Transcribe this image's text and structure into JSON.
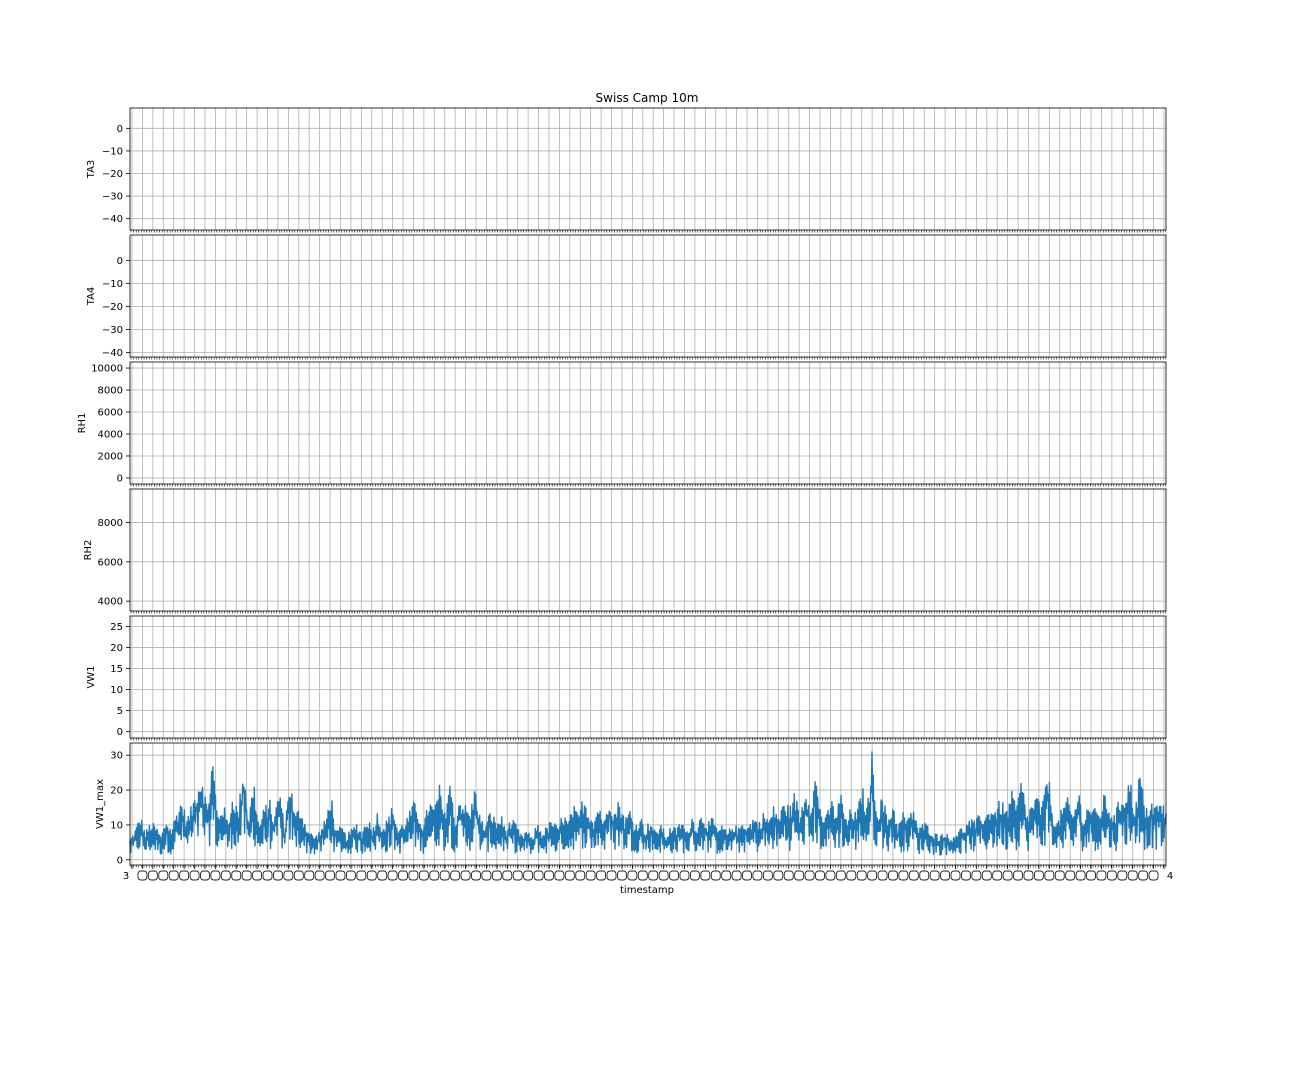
{
  "chart_data": {
    "type": "line",
    "title": "Swiss Camp 10m",
    "xlabel": "timestamp",
    "grid": true,
    "series_color": "#1f77b4",
    "x_tick_label_count": 100,
    "x_tick_labels_visible": [
      "3",
      "4"
    ],
    "panels": [
      {
        "ylabel": "TA3",
        "ylim": [
          -45,
          9
        ],
        "yticks": [
          0,
          -10,
          -20,
          -30,
          -40
        ],
        "ytick_labels": [
          "0",
          "−10",
          "−20",
          "−30",
          "−40"
        ],
        "values": []
      },
      {
        "ylabel": "TA4",
        "ylim": [
          -42,
          11
        ],
        "yticks": [
          0,
          -10,
          -20,
          -30,
          -40
        ],
        "ytick_labels": [
          "0",
          "−10",
          "−20",
          "−30",
          "−40"
        ],
        "values": []
      },
      {
        "ylabel": "RH1",
        "ylim": [
          -550,
          10550
        ],
        "yticks": [
          10000,
          8000,
          6000,
          4000,
          2000,
          0
        ],
        "ytick_labels": [
          "10000",
          "8000",
          "6000",
          "4000",
          "2000",
          "0"
        ],
        "values": []
      },
      {
        "ylabel": "RH2",
        "ylim": [
          3500,
          9700
        ],
        "yticks": [
          8000,
          6000,
          4000
        ],
        "ytick_labels": [
          "8000",
          "6000",
          "4000"
        ],
        "values": []
      },
      {
        "ylabel": "VW1",
        "ylim": [
          -1.5,
          27.5
        ],
        "yticks": [
          25,
          20,
          15,
          10,
          5,
          0
        ],
        "ytick_labels": [
          "25",
          "20",
          "15",
          "10",
          "5",
          "0"
        ],
        "values": []
      },
      {
        "ylabel": "VW1_max",
        "ylim": [
          -1.5,
          33.5
        ],
        "yticks": [
          30,
          20,
          10,
          0
        ],
        "ytick_labels": [
          "30",
          "20",
          "10",
          "0"
        ],
        "values": [
          6,
          9,
          13,
          8,
          11,
          10,
          7,
          12,
          9,
          14,
          18,
          12,
          16,
          22,
          26,
          15,
          31,
          13,
          17,
          11,
          20,
          14,
          29,
          12,
          24,
          10,
          15,
          18,
          12,
          22,
          9,
          25,
          13,
          16,
          11,
          8,
          7,
          9,
          12,
          20,
          8,
          10,
          7,
          9,
          11,
          8,
          13,
          9,
          14,
          10,
          12,
          16,
          9,
          11,
          13,
          17,
          14,
          10,
          18,
          15,
          22,
          13,
          25,
          11,
          19,
          16,
          14,
          22,
          12,
          10,
          15,
          11,
          13,
          9,
          12,
          10,
          7,
          9,
          6,
          11,
          8,
          10,
          12,
          9,
          14,
          11,
          16,
          13,
          19,
          15,
          12,
          17,
          11,
          20,
          14,
          18,
          12,
          15,
          10,
          13,
          9,
          12,
          8,
          11,
          7,
          10,
          9,
          12,
          8,
          13,
          10,
          14,
          11,
          12,
          9,
          10,
          8,
          11,
          9,
          12,
          10,
          13,
          11,
          14,
          12,
          16,
          13,
          18,
          15,
          20,
          13,
          22,
          17,
          25,
          15,
          12,
          18,
          14,
          20,
          11,
          16,
          13,
          22,
          15,
          32,
          14,
          19,
          12,
          17,
          10,
          14,
          12,
          16,
          9,
          11,
          10,
          8,
          7,
          9,
          6,
          8,
          9,
          10,
          12,
          11,
          14,
          13,
          16,
          15,
          18,
          14,
          20,
          16,
          24,
          13,
          17,
          19,
          15,
          28,
          14,
          11,
          16,
          18,
          13,
          21,
          12,
          17,
          15,
          14,
          19,
          16,
          13,
          18,
          20,
          24,
          15,
          27,
          14,
          18,
          16,
          17,
          15
        ]
      }
    ]
  }
}
